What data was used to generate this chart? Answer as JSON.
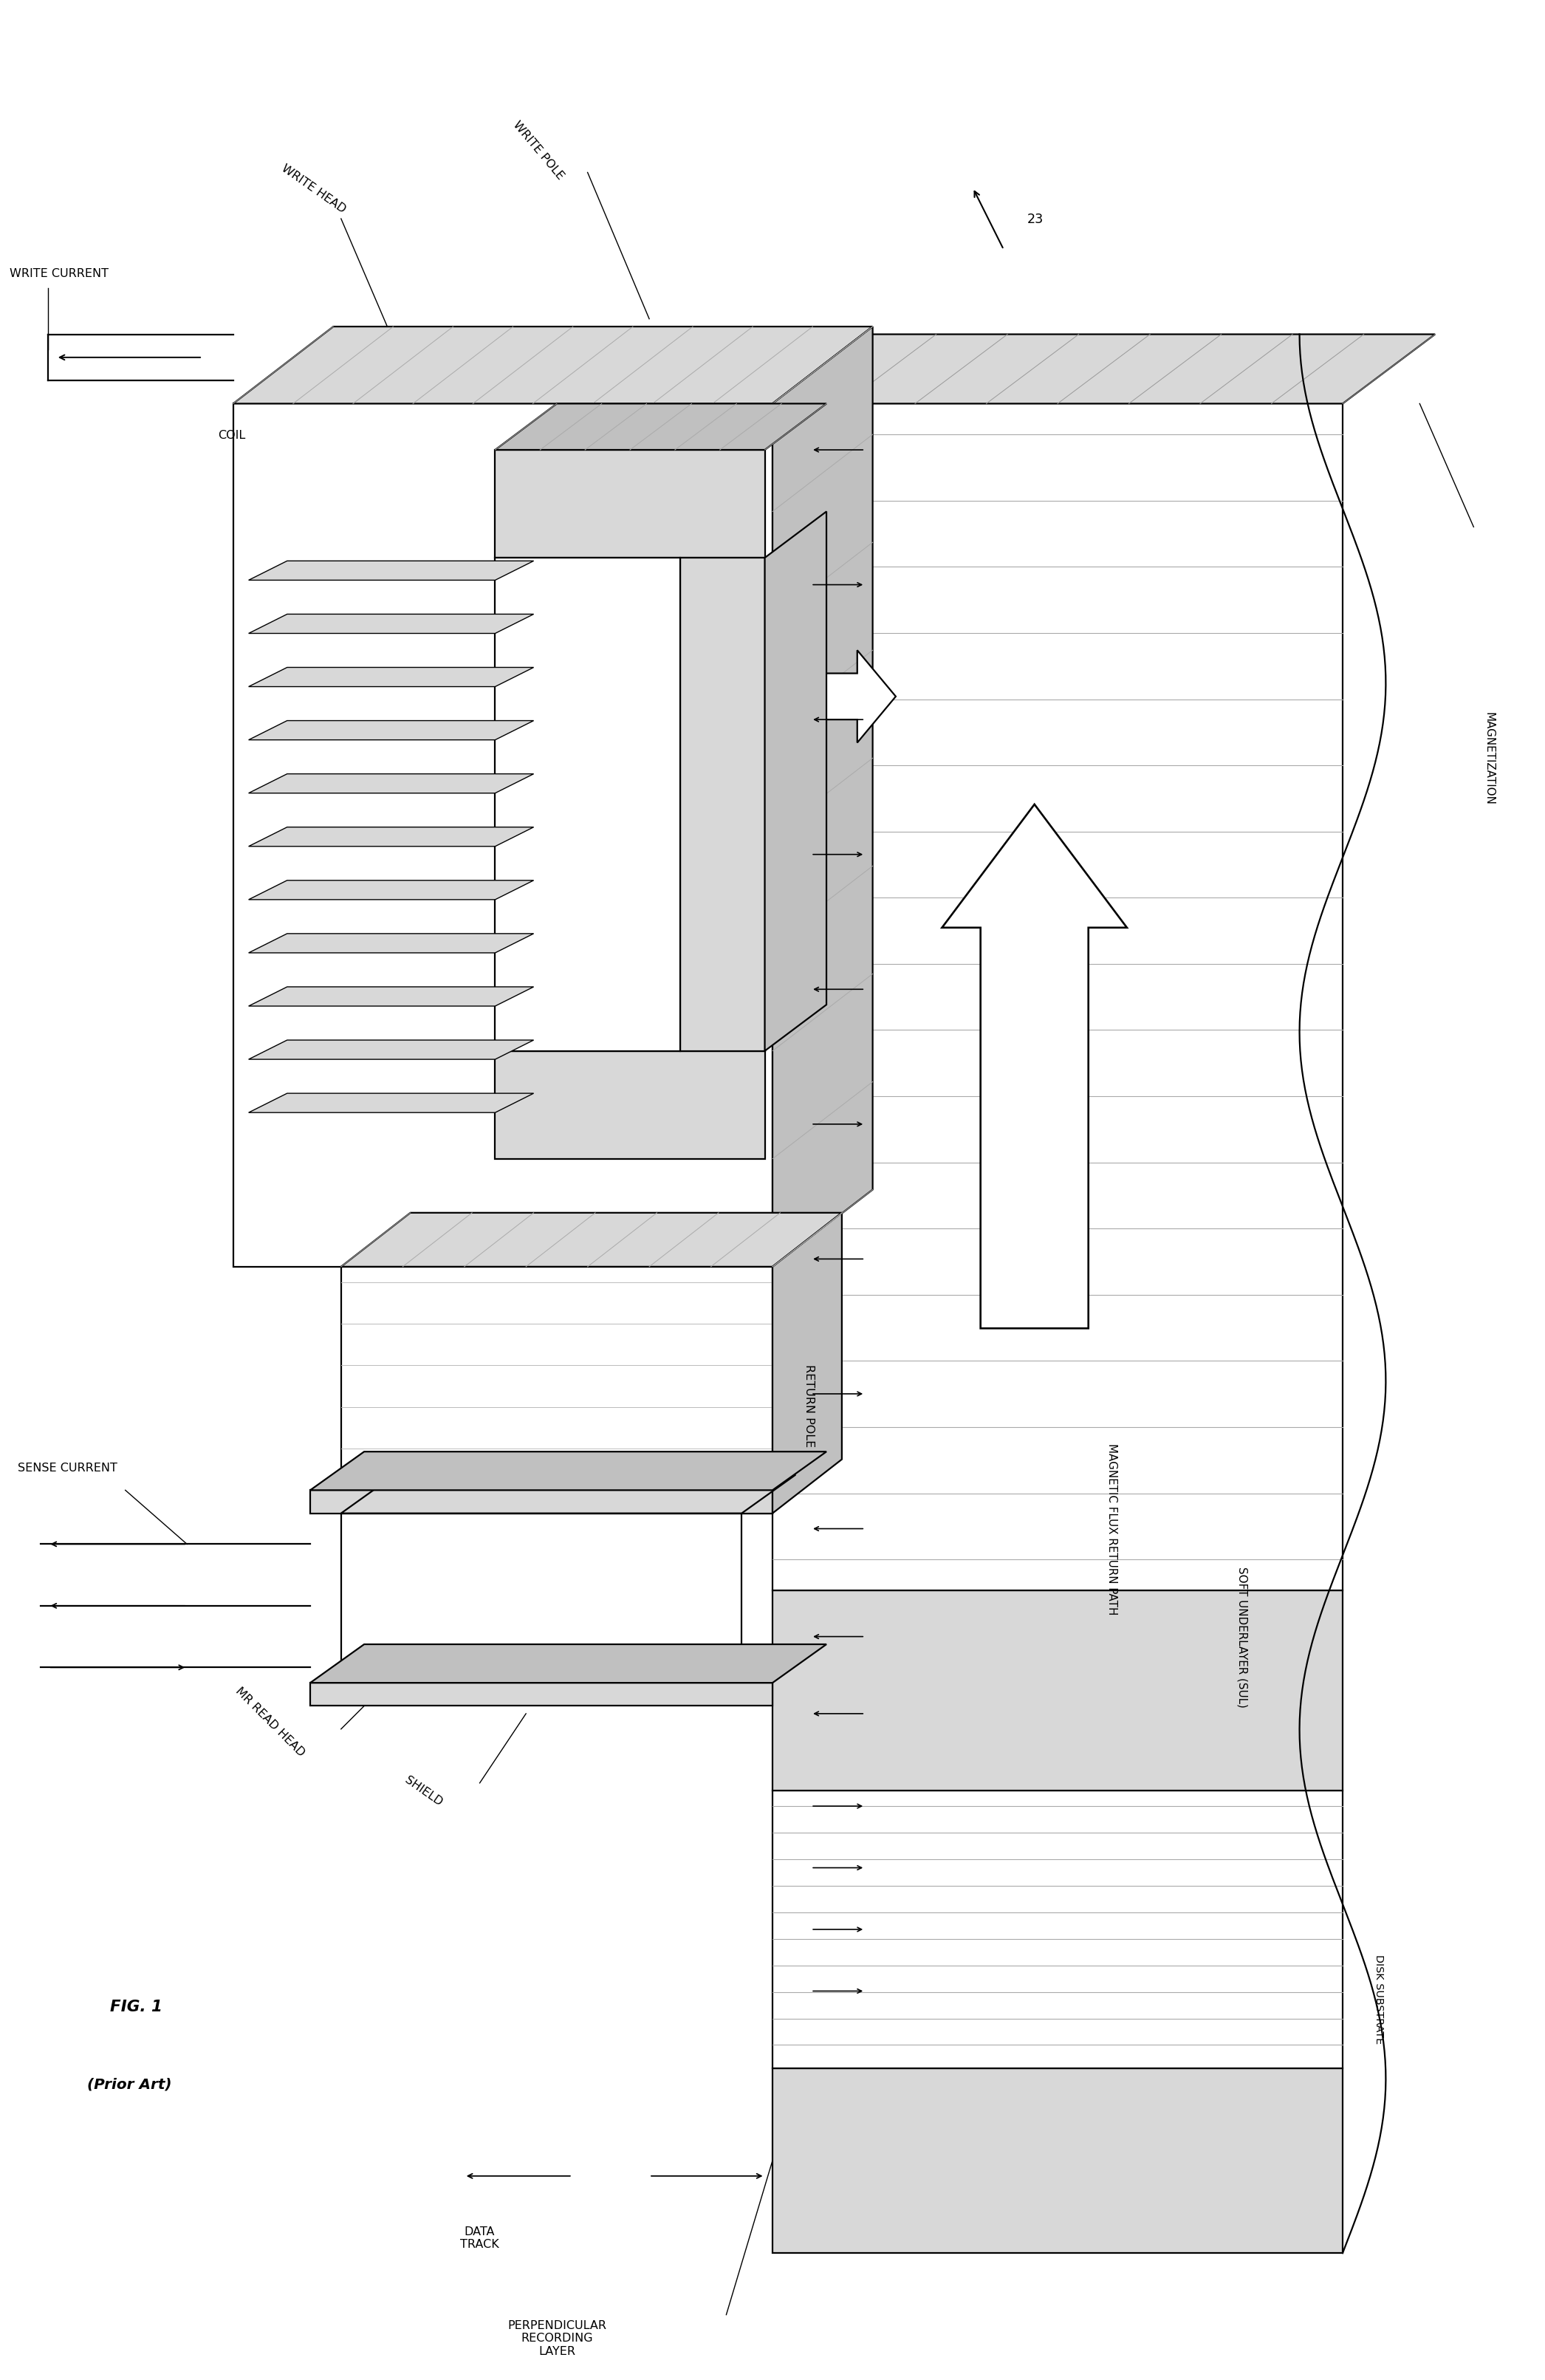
{
  "bg_color": "#ffffff",
  "lw": 1.6,
  "fig_width": 20.92,
  "fig_height": 32.23,
  "labels": {
    "write_current": "WRITE CURRENT",
    "write_head": "WRITE HEAD",
    "write_pole": "WRITE POLE",
    "coil": "COIL",
    "sense_current": "SENSE CURRENT",
    "mr_read_head": "MR READ HEAD",
    "shield": "SHIELD",
    "data_track": "DATA\nTRACK",
    "perpendicular_recording": "PERPENDICULAR\nRECORDING\nLAYER",
    "return_pole": "RETURN POLE",
    "magnetic_flux": "MAGNETIC FLUX RETURN PATH",
    "soft_underlayer": "SOFT UNDERLAYER (SUL)",
    "disk_substrate": "DISK SUBSTRATE",
    "magnetization": "MAGNETIZATION",
    "number_23": "23",
    "fig1": "FIG. 1",
    "prior_art": "(Prior Art)"
  },
  "colors": {
    "white": "#ffffff",
    "light_gray": "#d8d8d8",
    "mid_gray": "#c0c0c0",
    "dark_gray": "#a0a0a0",
    "hatch_gray": "#bbbbbb",
    "black": "#000000"
  }
}
